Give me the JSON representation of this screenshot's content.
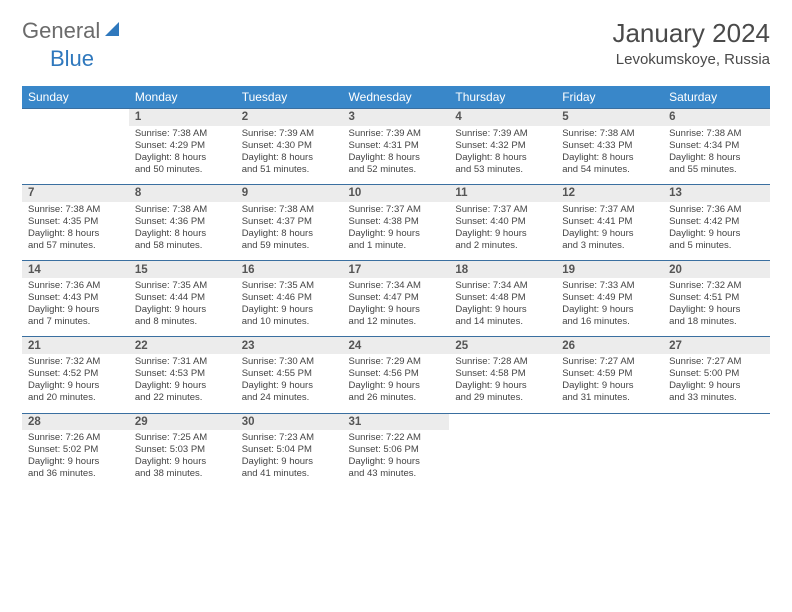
{
  "brand": {
    "part1": "General",
    "part2": "Blue"
  },
  "title": "January 2024",
  "location": "Levokumskoye, Russia",
  "colors": {
    "header_bg": "#3987c9",
    "header_text": "#ffffff",
    "daynum_bg": "#ececec",
    "row_border": "#3a6fa0",
    "logo_gray": "#6b6b6b",
    "logo_blue": "#2f78bd",
    "text": "#333333"
  },
  "weekdays": [
    "Sunday",
    "Monday",
    "Tuesday",
    "Wednesday",
    "Thursday",
    "Friday",
    "Saturday"
  ],
  "weeks": [
    {
      "nums": [
        "",
        "1",
        "2",
        "3",
        "4",
        "5",
        "6"
      ],
      "cells": [
        null,
        {
          "sunrise": "7:38 AM",
          "sunset": "4:29 PM",
          "dl1": "Daylight: 8 hours",
          "dl2": "and 50 minutes."
        },
        {
          "sunrise": "7:39 AM",
          "sunset": "4:30 PM",
          "dl1": "Daylight: 8 hours",
          "dl2": "and 51 minutes."
        },
        {
          "sunrise": "7:39 AM",
          "sunset": "4:31 PM",
          "dl1": "Daylight: 8 hours",
          "dl2": "and 52 minutes."
        },
        {
          "sunrise": "7:39 AM",
          "sunset": "4:32 PM",
          "dl1": "Daylight: 8 hours",
          "dl2": "and 53 minutes."
        },
        {
          "sunrise": "7:38 AM",
          "sunset": "4:33 PM",
          "dl1": "Daylight: 8 hours",
          "dl2": "and 54 minutes."
        },
        {
          "sunrise": "7:38 AM",
          "sunset": "4:34 PM",
          "dl1": "Daylight: 8 hours",
          "dl2": "and 55 minutes."
        }
      ]
    },
    {
      "nums": [
        "7",
        "8",
        "9",
        "10",
        "11",
        "12",
        "13"
      ],
      "cells": [
        {
          "sunrise": "7:38 AM",
          "sunset": "4:35 PM",
          "dl1": "Daylight: 8 hours",
          "dl2": "and 57 minutes."
        },
        {
          "sunrise": "7:38 AM",
          "sunset": "4:36 PM",
          "dl1": "Daylight: 8 hours",
          "dl2": "and 58 minutes."
        },
        {
          "sunrise": "7:38 AM",
          "sunset": "4:37 PM",
          "dl1": "Daylight: 8 hours",
          "dl2": "and 59 minutes."
        },
        {
          "sunrise": "7:37 AM",
          "sunset": "4:38 PM",
          "dl1": "Daylight: 9 hours",
          "dl2": "and 1 minute."
        },
        {
          "sunrise": "7:37 AM",
          "sunset": "4:40 PM",
          "dl1": "Daylight: 9 hours",
          "dl2": "and 2 minutes."
        },
        {
          "sunrise": "7:37 AM",
          "sunset": "4:41 PM",
          "dl1": "Daylight: 9 hours",
          "dl2": "and 3 minutes."
        },
        {
          "sunrise": "7:36 AM",
          "sunset": "4:42 PM",
          "dl1": "Daylight: 9 hours",
          "dl2": "and 5 minutes."
        }
      ]
    },
    {
      "nums": [
        "14",
        "15",
        "16",
        "17",
        "18",
        "19",
        "20"
      ],
      "cells": [
        {
          "sunrise": "7:36 AM",
          "sunset": "4:43 PM",
          "dl1": "Daylight: 9 hours",
          "dl2": "and 7 minutes."
        },
        {
          "sunrise": "7:35 AM",
          "sunset": "4:44 PM",
          "dl1": "Daylight: 9 hours",
          "dl2": "and 8 minutes."
        },
        {
          "sunrise": "7:35 AM",
          "sunset": "4:46 PM",
          "dl1": "Daylight: 9 hours",
          "dl2": "and 10 minutes."
        },
        {
          "sunrise": "7:34 AM",
          "sunset": "4:47 PM",
          "dl1": "Daylight: 9 hours",
          "dl2": "and 12 minutes."
        },
        {
          "sunrise": "7:34 AM",
          "sunset": "4:48 PM",
          "dl1": "Daylight: 9 hours",
          "dl2": "and 14 minutes."
        },
        {
          "sunrise": "7:33 AM",
          "sunset": "4:49 PM",
          "dl1": "Daylight: 9 hours",
          "dl2": "and 16 minutes."
        },
        {
          "sunrise": "7:32 AM",
          "sunset": "4:51 PM",
          "dl1": "Daylight: 9 hours",
          "dl2": "and 18 minutes."
        }
      ]
    },
    {
      "nums": [
        "21",
        "22",
        "23",
        "24",
        "25",
        "26",
        "27"
      ],
      "cells": [
        {
          "sunrise": "7:32 AM",
          "sunset": "4:52 PM",
          "dl1": "Daylight: 9 hours",
          "dl2": "and 20 minutes."
        },
        {
          "sunrise": "7:31 AM",
          "sunset": "4:53 PM",
          "dl1": "Daylight: 9 hours",
          "dl2": "and 22 minutes."
        },
        {
          "sunrise": "7:30 AM",
          "sunset": "4:55 PM",
          "dl1": "Daylight: 9 hours",
          "dl2": "and 24 minutes."
        },
        {
          "sunrise": "7:29 AM",
          "sunset": "4:56 PM",
          "dl1": "Daylight: 9 hours",
          "dl2": "and 26 minutes."
        },
        {
          "sunrise": "7:28 AM",
          "sunset": "4:58 PM",
          "dl1": "Daylight: 9 hours",
          "dl2": "and 29 minutes."
        },
        {
          "sunrise": "7:27 AM",
          "sunset": "4:59 PM",
          "dl1": "Daylight: 9 hours",
          "dl2": "and 31 minutes."
        },
        {
          "sunrise": "7:27 AM",
          "sunset": "5:00 PM",
          "dl1": "Daylight: 9 hours",
          "dl2": "and 33 minutes."
        }
      ]
    },
    {
      "nums": [
        "28",
        "29",
        "30",
        "31",
        "",
        "",
        ""
      ],
      "cells": [
        {
          "sunrise": "7:26 AM",
          "sunset": "5:02 PM",
          "dl1": "Daylight: 9 hours",
          "dl2": "and 36 minutes."
        },
        {
          "sunrise": "7:25 AM",
          "sunset": "5:03 PM",
          "dl1": "Daylight: 9 hours",
          "dl2": "and 38 minutes."
        },
        {
          "sunrise": "7:23 AM",
          "sunset": "5:04 PM",
          "dl1": "Daylight: 9 hours",
          "dl2": "and 41 minutes."
        },
        {
          "sunrise": "7:22 AM",
          "sunset": "5:06 PM",
          "dl1": "Daylight: 9 hours",
          "dl2": "and 43 minutes."
        },
        null,
        null,
        null
      ]
    }
  ]
}
